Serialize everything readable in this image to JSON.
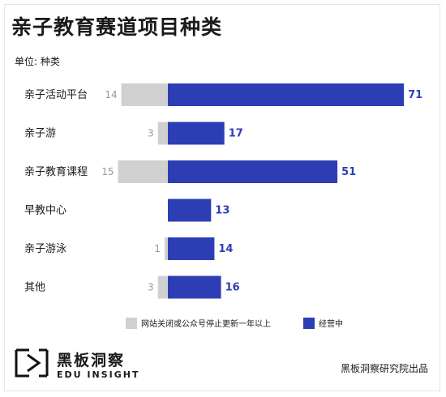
{
  "title": "亲子教育赛道项目种类",
  "unit_label": "单位: 种类",
  "chart_data": {
    "type": "bar",
    "orientation": "horizontal-diverging",
    "categories": [
      "亲子活动平台",
      "亲子游",
      "亲子教育课程",
      "早教中心",
      "亲子游泳",
      "其他"
    ],
    "series": [
      {
        "name": "网站关闭或公众号停止更新一年以上",
        "color": "#d0d0d0",
        "values": [
          14,
          3,
          15,
          0,
          1,
          3
        ]
      },
      {
        "name": "经营中",
        "color": "#2d3eb5",
        "values": [
          71,
          17,
          51,
          13,
          14,
          16
        ]
      }
    ],
    "grid": false,
    "legend_position": "bottom"
  },
  "brand": {
    "name": "黑板洞察",
    "english": "EDU INSIGHT",
    "logo_icon": "edu-insight-logo-icon"
  },
  "credit": "黑板洞察研究院出品"
}
